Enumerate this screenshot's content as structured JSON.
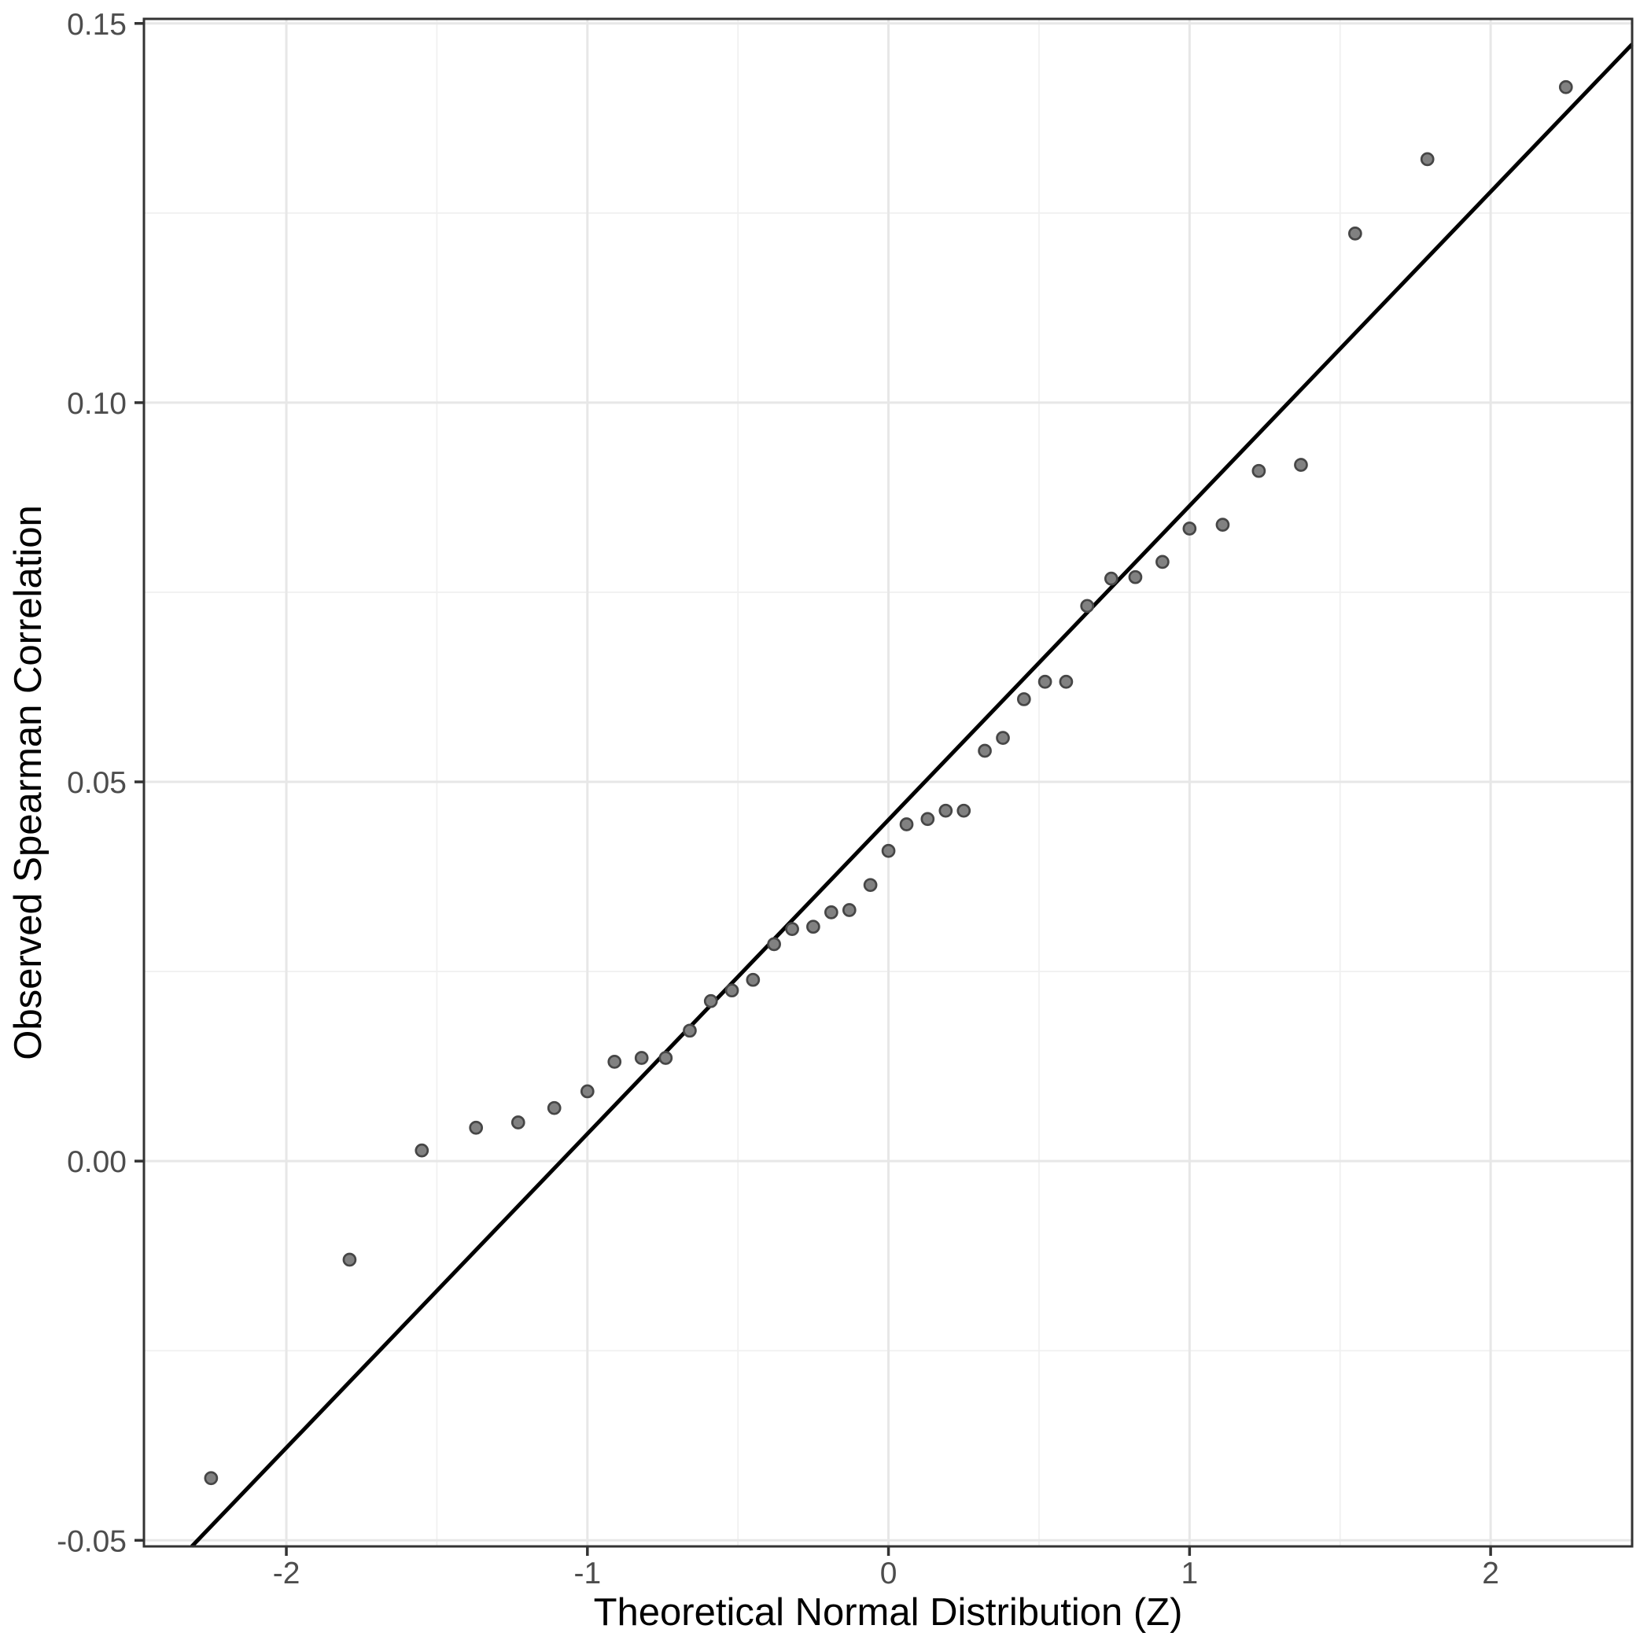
{
  "chart_data": {
    "type": "scatter",
    "title": "",
    "xlabel": "Theoretical Normal Distribution (Z)",
    "ylabel": "Observed Spearman Correlation",
    "xlim": [
      -2.473,
      2.47
    ],
    "ylim": [
      -0.0508,
      0.1506
    ],
    "grid": "major and minor, on",
    "legend": "none",
    "x_ticks": {
      "values": [
        -2,
        -1,
        0,
        1,
        2
      ],
      "labels": [
        "-2",
        "-1",
        "0",
        "1",
        "2"
      ]
    },
    "y_ticks": {
      "values": [
        -0.05,
        0.0,
        0.05,
        0.1,
        0.15
      ],
      "labels": [
        "-0.05",
        "0.00",
        "0.05",
        "0.10",
        "0.15"
      ]
    },
    "x_minor_gridlines": [
      -1.5,
      -0.5,
      0.5,
      1.5
    ],
    "y_minor_gridlines": [
      -0.025,
      0.025,
      0.075,
      0.125
    ],
    "points": [
      [
        -2.25,
        -0.0418
      ],
      [
        -1.79,
        -0.013
      ],
      [
        -1.55,
        0.0014
      ],
      [
        -1.37,
        0.0044
      ],
      [
        -1.23,
        0.0051
      ],
      [
        -1.11,
        0.007
      ],
      [
        -1.0,
        0.0092
      ],
      [
        -0.91,
        0.0131
      ],
      [
        -0.82,
        0.0136
      ],
      [
        -0.74,
        0.0136
      ],
      [
        -0.66,
        0.0172
      ],
      [
        -0.59,
        0.0211
      ],
      [
        -0.52,
        0.0225
      ],
      [
        -0.45,
        0.0239
      ],
      [
        -0.38,
        0.0286
      ],
      [
        -0.32,
        0.0306
      ],
      [
        -0.25,
        0.0309
      ],
      [
        -0.19,
        0.0328
      ],
      [
        -0.13,
        0.0331
      ],
      [
        -0.06,
        0.0364
      ],
      [
        0.0,
        0.0409
      ],
      [
        0.06,
        0.0444
      ],
      [
        0.13,
        0.0451
      ],
      [
        0.19,
        0.0462
      ],
      [
        0.25,
        0.0462
      ],
      [
        0.32,
        0.0541
      ],
      [
        0.38,
        0.0558
      ],
      [
        0.45,
        0.0609
      ],
      [
        0.52,
        0.0632
      ],
      [
        0.59,
        0.0632
      ],
      [
        0.66,
        0.0732
      ],
      [
        0.74,
        0.0768
      ],
      [
        0.82,
        0.077
      ],
      [
        0.91,
        0.079
      ],
      [
        1.0,
        0.0834
      ],
      [
        1.11,
        0.0839
      ],
      [
        1.23,
        0.091
      ],
      [
        1.37,
        0.0918
      ],
      [
        1.55,
        0.1223
      ],
      [
        1.79,
        0.1321
      ],
      [
        2.25,
        0.1416
      ]
    ],
    "reference_line": {
      "slope": 0.0414,
      "intercept": 0.045
    },
    "colors": {
      "background": "#FFFFFF",
      "panel_background": "#FFFFFF",
      "panel_border": "#333333",
      "grid_major": "#E7E7E7",
      "grid_minor": "#F0F0F0",
      "point_fill": "#818181",
      "point_stroke": "#464646",
      "reference_line": "#000000",
      "tick_mark": "#333333",
      "tick_label": "#4D4D4D",
      "axis_title": "#000000"
    }
  }
}
